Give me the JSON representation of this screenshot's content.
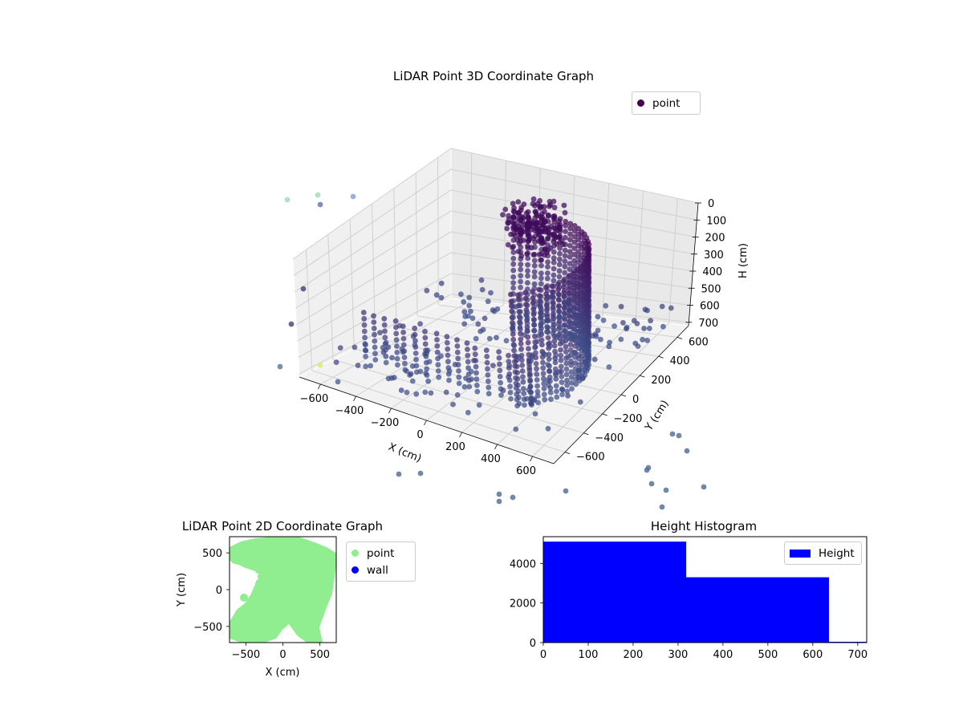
{
  "chart_data": [
    {
      "type": "scatter",
      "projection": "3d",
      "title": "LiDAR Point 3D Coordinate Graph",
      "xlabel": "X (cm)",
      "ylabel": "Y (cm)",
      "zlabel": "H (cm)",
      "xticks": [
        -600,
        -400,
        -200,
        0,
        200,
        400,
        600
      ],
      "yticks": [
        -600,
        -400,
        -200,
        0,
        200,
        400,
        600
      ],
      "zticks": [
        0,
        100,
        200,
        300,
        400,
        500,
        600,
        700
      ],
      "xlim": [
        -720,
        720
      ],
      "ylim": [
        -720,
        720
      ],
      "zlim": [
        0,
        720
      ],
      "z_inverted": true,
      "colormap": "viridis",
      "legend": {
        "position": "top-right",
        "entries": [
          {
            "name": "point",
            "color": "#440154"
          }
        ]
      },
      "grid": true
    },
    {
      "type": "scatter",
      "title": "LiDAR Point 2D Coordinate Graph",
      "xlabel": "X (cm)",
      "ylabel": "Y (cm)",
      "xticks": [
        -500,
        0,
        500
      ],
      "yticks": [
        -500,
        0,
        500
      ],
      "xlim": [
        -720,
        720
      ],
      "ylim": [
        -720,
        720
      ],
      "legend": {
        "position": "outside-right",
        "entries": [
          {
            "name": "point",
            "color": "#90ee90"
          },
          {
            "name": "wall",
            "color": "#0000ff"
          }
        ]
      },
      "grid": false
    },
    {
      "type": "bar",
      "title": "Height Histogram",
      "bins": [
        {
          "start": 0,
          "end": 318,
          "count": 5100
        },
        {
          "start": 318,
          "end": 636,
          "count": 3300
        },
        {
          "start": 636,
          "end": 720,
          "count": 40
        }
      ],
      "xticks": [
        0,
        100,
        200,
        300,
        400,
        500,
        600,
        700
      ],
      "yticks": [
        0,
        2000,
        4000
      ],
      "xlim": [
        0,
        720
      ],
      "ylim": [
        0,
        5350
      ],
      "bar_color": "#0000ff",
      "legend": {
        "position": "top-right",
        "entries": [
          {
            "name": "Height",
            "color": "#0000ff"
          }
        ]
      },
      "grid": false
    }
  ]
}
